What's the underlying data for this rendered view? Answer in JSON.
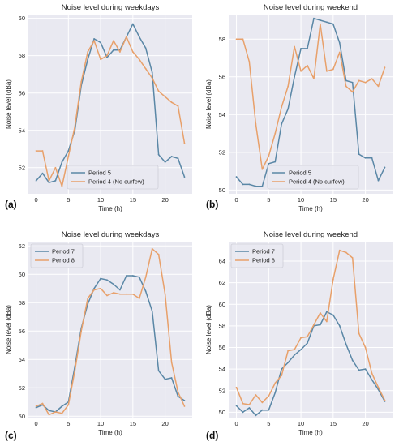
{
  "colors": {
    "series_blue": "#5a87a6",
    "series_orange": "#e8a06a",
    "panel_bg": "#e9e9f1",
    "grid": "#ffffff"
  },
  "chart_data": [
    {
      "panel": "(a)",
      "type": "line",
      "title": "Noise level during weekdays",
      "xlabel": "Time (h)",
      "ylabel": "Noise level (dBa)",
      "xlim": [
        -1.2,
        24.2
      ],
      "ylim": [
        50.6,
        60.2
      ],
      "xticks": [
        0,
        5,
        10,
        15,
        20
      ],
      "yticks": [
        52,
        54,
        56,
        58,
        60
      ],
      "legend_position": "lower-center",
      "grid": true,
      "x": [
        0,
        1,
        2,
        3,
        4,
        5,
        6,
        7,
        8,
        9,
        10,
        11,
        12,
        13,
        14,
        15,
        16,
        17,
        18,
        19,
        20,
        21,
        22,
        23
      ],
      "series": [
        {
          "name": "Period 5",
          "color_key": "series_blue",
          "values": [
            51.3,
            51.7,
            51.2,
            51.3,
            52.3,
            52.9,
            54.0,
            56.4,
            57.8,
            58.9,
            58.7,
            57.9,
            58.3,
            58.3,
            59.0,
            59.7,
            59.0,
            58.4,
            57.1,
            52.7,
            52.3,
            52.6,
            52.5,
            51.5
          ]
        },
        {
          "name": "Period 4 (No curfew)",
          "color_key": "series_orange",
          "values": [
            52.9,
            52.9,
            51.3,
            52.0,
            51.0,
            52.6,
            54.2,
            56.6,
            58.2,
            58.8,
            57.8,
            58.0,
            58.8,
            58.2,
            59.0,
            58.2,
            57.8,
            57.3,
            56.8,
            56.1,
            55.8,
            55.5,
            55.3,
            53.3
          ]
        }
      ]
    },
    {
      "panel": "(b)",
      "type": "line",
      "title": "Noise level during weekend",
      "xlabel": "Time (h)",
      "ylabel": "Noise level (dBa)",
      "xlim": [
        -1.2,
        24.2
      ],
      "ylim": [
        49.8,
        59.3
      ],
      "xticks": [
        0,
        5,
        10,
        15,
        20
      ],
      "yticks": [
        50,
        52,
        54,
        56,
        58
      ],
      "legend_position": "lower-center",
      "grid": true,
      "x": [
        0,
        1,
        2,
        3,
        4,
        5,
        6,
        7,
        8,
        9,
        10,
        11,
        12,
        13,
        14,
        15,
        16,
        17,
        18,
        19,
        20,
        21,
        22,
        23
      ],
      "series": [
        {
          "name": "Period 5",
          "color_key": "series_blue",
          "values": [
            50.7,
            50.3,
            50.3,
            50.2,
            50.2,
            51.4,
            51.5,
            53.5,
            54.3,
            56.0,
            57.5,
            57.5,
            59.1,
            59.0,
            58.9,
            58.8,
            57.8,
            55.8,
            55.7,
            51.9,
            51.7,
            51.7,
            50.5,
            51.2
          ]
        },
        {
          "name": "Period 4 (No curfew)",
          "color_key": "series_orange",
          "values": [
            58.0,
            58.0,
            56.8,
            53.5,
            51.1,
            51.8,
            53.0,
            54.4,
            55.5,
            57.6,
            56.3,
            56.6,
            55.9,
            58.8,
            56.3,
            56.4,
            57.3,
            55.5,
            55.2,
            55.8,
            55.7,
            55.9,
            55.5,
            56.5
          ]
        }
      ]
    },
    {
      "panel": "(c)",
      "type": "line",
      "title": "Noise level during weekdays",
      "xlabel": "Time (h)",
      "ylabel": "Noise level (dBa)",
      "xlim": [
        -1.2,
        24.2
      ],
      "ylim": [
        49.9,
        62.3
      ],
      "xticks": [
        0,
        5,
        10,
        15,
        20
      ],
      "yticks": [
        50,
        52,
        54,
        56,
        58,
        60,
        62
      ],
      "legend_position": "top-left",
      "grid": true,
      "x": [
        0,
        1,
        2,
        3,
        4,
        5,
        6,
        7,
        8,
        9,
        10,
        11,
        12,
        13,
        14,
        15,
        16,
        17,
        18,
        19,
        20,
        21,
        22,
        23
      ],
      "series": [
        {
          "name": "Period 7",
          "color_key": "series_blue",
          "values": [
            50.6,
            50.8,
            50.4,
            50.3,
            50.7,
            51.0,
            53.5,
            56.2,
            57.9,
            59.0,
            59.7,
            59.6,
            59.3,
            58.9,
            59.9,
            59.9,
            59.8,
            58.8,
            57.4,
            53.2,
            52.6,
            52.7,
            51.4,
            51.1
          ]
        },
        {
          "name": "Period 8",
          "color_key": "series_orange",
          "values": [
            50.7,
            50.9,
            50.1,
            50.3,
            50.2,
            50.8,
            53.2,
            56.0,
            58.3,
            58.9,
            59.0,
            58.5,
            58.7,
            58.6,
            58.6,
            58.6,
            58.3,
            59.8,
            61.8,
            61.4,
            58.6,
            53.8,
            51.7,
            50.7
          ]
        }
      ]
    },
    {
      "panel": "(d)",
      "type": "line",
      "title": "Noise level during weekend",
      "xlabel": "Time (h)",
      "ylabel": "Noise level (dBa)",
      "xlim": [
        -1.2,
        24.2
      ],
      "ylim": [
        49.5,
        65.8
      ],
      "xticks": [
        0,
        5,
        10,
        15,
        20
      ],
      "yticks": [
        50,
        52,
        54,
        56,
        58,
        60,
        62,
        64
      ],
      "legend_position": "top-left",
      "grid": true,
      "x": [
        0,
        1,
        2,
        3,
        4,
        5,
        6,
        7,
        8,
        9,
        10,
        11,
        12,
        13,
        14,
        15,
        16,
        17,
        18,
        19,
        20,
        21,
        22,
        23
      ],
      "series": [
        {
          "name": "Period 7",
          "color_key": "series_blue",
          "values": [
            50.6,
            50.0,
            50.4,
            49.7,
            50.2,
            50.2,
            51.8,
            54.0,
            54.6,
            55.3,
            55.8,
            56.4,
            58.0,
            58.1,
            59.3,
            59.0,
            58.0,
            56.3,
            54.8,
            53.9,
            54.0,
            53.0,
            52.1,
            51.0
          ]
        },
        {
          "name": "Period 8",
          "color_key": "series_orange",
          "values": [
            52.3,
            50.8,
            50.7,
            51.6,
            50.9,
            51.5,
            52.7,
            53.4,
            55.7,
            55.8,
            56.9,
            57.0,
            58.1,
            59.2,
            58.4,
            62.3,
            65.0,
            64.8,
            64.3,
            57.3,
            56.0,
            53.6,
            52.3,
            51.1
          ]
        }
      ]
    }
  ]
}
